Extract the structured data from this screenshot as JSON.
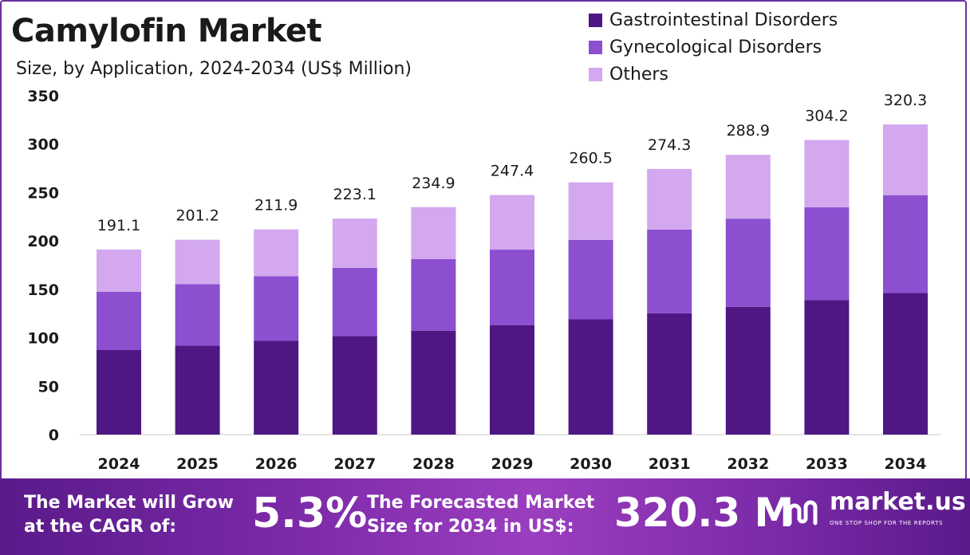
{
  "chart_data": {
    "type": "bar",
    "stacked": true,
    "title": "Camylofin Market",
    "subtitle": "Size, by Application, 2024-2034 (US$ Million)",
    "categories": [
      "2024",
      "2025",
      "2026",
      "2027",
      "2028",
      "2029",
      "2030",
      "2031",
      "2032",
      "2033",
      "2034"
    ],
    "series": [
      {
        "name": "Gastrointestinal Disorders",
        "color": "#4e1783",
        "values": [
          87.3,
          92.0,
          96.8,
          101.9,
          107.3,
          113.1,
          119.0,
          125.3,
          132.0,
          139.0,
          146.4
        ]
      },
      {
        "name": "Gynecological Disorders",
        "color": "#8b4fd0",
        "values": [
          60.2,
          63.4,
          66.8,
          70.3,
          74.0,
          77.9,
          82.0,
          86.4,
          91.0,
          95.8,
          100.9
        ]
      },
      {
        "name": "Others",
        "color": "#d3a8ee",
        "values": [
          43.6,
          45.8,
          48.3,
          50.9,
          53.6,
          56.4,
          59.5,
          62.6,
          65.9,
          69.4,
          73.0
        ]
      }
    ],
    "totals": [
      "191.1",
      "201.2",
      "211.9",
      "223.1",
      "234.9",
      "247.4",
      "260.5",
      "274.3",
      "288.9",
      "304.2",
      "320.3"
    ],
    "totals_values": [
      191.1,
      201.2,
      211.9,
      223.1,
      234.9,
      247.4,
      260.5,
      274.3,
      288.9,
      304.2,
      320.3
    ],
    "ylim": [
      0,
      350
    ],
    "yticks": [
      "0",
      "50",
      "100",
      "150",
      "200",
      "250",
      "300",
      "350"
    ],
    "grid": false,
    "legend_position": "top-right"
  },
  "footer": {
    "cagr_text_line1": "The Market will Grow",
    "cagr_text_line2": "at the CAGR of:",
    "cagr_value": "5.3%",
    "forecast_text_line1": "The Forecasted Market",
    "forecast_text_line2": "Size for 2034 in US$:",
    "forecast_value": "320.3 M",
    "brand": "market.us",
    "brand_tagline": "ONE STOP SHOP FOR THE REPORTS"
  }
}
